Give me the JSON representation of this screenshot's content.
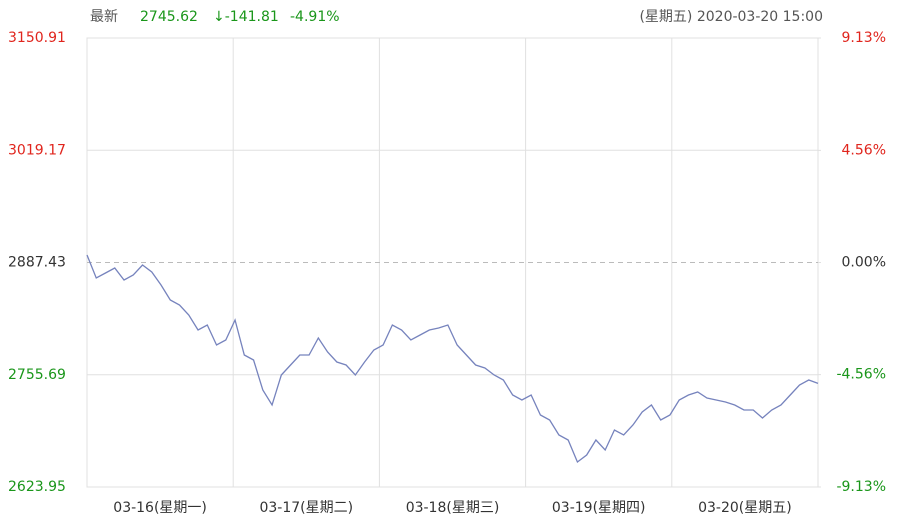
{
  "header": {
    "label": "最新",
    "price": "2745.62",
    "change": "↓-141.81",
    "pct": "-4.91%",
    "datetime": "(星期五) 2020-03-20 15:00"
  },
  "chart_data": {
    "type": "line",
    "days": [
      "03-16(星期一)",
      "03-17(星期二)",
      "03-18(星期三)",
      "03-19(星期四)",
      "03-20(星期五)"
    ],
    "series": [
      {
        "color": "#7683bd",
        "values": [
          2896.23,
          2869.24,
          2875.11,
          2880.98,
          2866.89,
          2872.76,
          2884.5,
          2876.28,
          2861.02,
          2843.42,
          2837.55,
          2825.81,
          2808.21,
          2814.08,
          2790.61,
          2796.47,
          2819.95,
          2778.87,
          2773.0,
          2737.79,
          2720.19,
          2755.4,
          2767.13,
          2778.87,
          2778.87,
          2798.82,
          2782.39,
          2770.65,
          2767.13,
          2755.4,
          2770.65,
          2784.74,
          2790.61,
          2814.08,
          2808.21,
          2796.47,
          2802.34,
          2808.21,
          2810.56,
          2814.08,
          2790.61,
          2778.87,
          2767.13,
          2763.61,
          2755.4,
          2749.53,
          2731.92,
          2726.06,
          2731.92,
          2708.45,
          2702.58,
          2684.98,
          2679.11,
          2653.29,
          2661.51,
          2679.11,
          2667.37,
          2690.85,
          2684.98,
          2696.71,
          2711.97,
          2720.19,
          2702.58,
          2708.45,
          2726.06,
          2731.92,
          2735.44,
          2728.4,
          2726.06,
          2723.71,
          2720.19,
          2714.32,
          2714.32,
          2704.93,
          2714.32,
          2720.19,
          2731.92,
          2743.66,
          2749.53,
          2745.62
        ]
      }
    ],
    "ylim": [
      2623.95,
      3150.91
    ],
    "yticks": [
      3150.91,
      3019.17,
      2887.43,
      2755.69,
      2623.95
    ],
    "y2lim": [
      -9.13,
      9.13
    ],
    "y2ticks": [
      {
        "value": 9.13,
        "label": "9.13%"
      },
      {
        "value": 4.56,
        "label": "4.56%"
      },
      {
        "value": 0,
        "label": "0.00%"
      },
      {
        "value": -4.56,
        "label": "-4.56%"
      },
      {
        "value": -9.13,
        "label": "-9.13%"
      }
    ],
    "grid": true,
    "up_color": "#e0251d",
    "down_color": "#1a961a",
    "grid_color": "#e0e0e0"
  }
}
